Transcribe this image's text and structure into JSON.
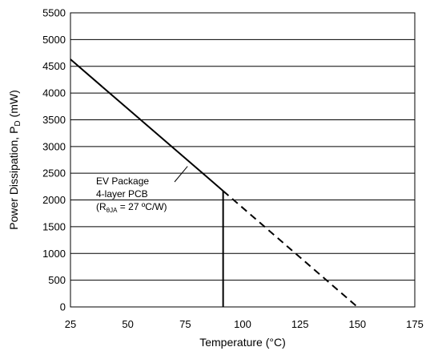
{
  "chart_data": {
    "type": "line",
    "xlabel": "Temperature (°C)",
    "ylabel_main": "Power Dissipation, P",
    "ylabel_sub": "D",
    "ylabel_unit": " (mW)",
    "xlim": [
      25,
      175
    ],
    "ylim": [
      0,
      5500
    ],
    "x_ticks": [
      "25",
      "50",
      "75",
      "100",
      "125",
      "150",
      "175"
    ],
    "y_ticks": [
      "0",
      "500",
      "1000",
      "1500",
      "2000",
      "2500",
      "3000",
      "3500",
      "4000",
      "4500",
      "5000",
      "5500"
    ],
    "grid": "horizontal",
    "series": [
      {
        "style": "solid",
        "x": [
          25,
          91.5
        ],
        "y": [
          4630,
          2170
        ]
      },
      {
        "style": "dashed",
        "x": [
          91.5,
          150
        ],
        "y": [
          2170,
          0
        ]
      },
      {
        "style": "vertical",
        "x": [
          91.5,
          91.5
        ],
        "y": [
          0,
          2170
        ]
      }
    ],
    "annotation": {
      "line1": "EV Package",
      "line2": "4-layer PCB",
      "line3_open": "(R",
      "line3_sub": "θJA",
      "line3_rest": " = 27 ºC/W)",
      "pointer_to": {
        "x": 76,
        "y": 2630
      }
    }
  }
}
